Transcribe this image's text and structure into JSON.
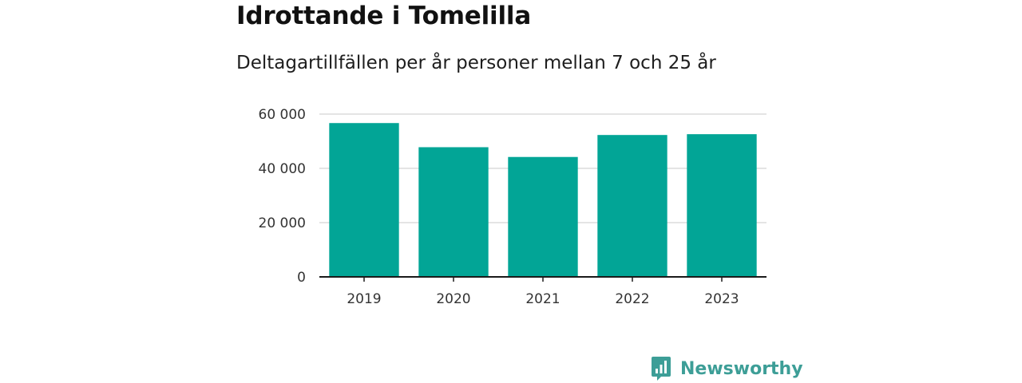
{
  "colors": {
    "bar": "#02a596",
    "grid": "#dcdcdc",
    "axis": "#1a1a1a",
    "brand": "#3d9e97"
  },
  "brand": {
    "name": "Newsworthy",
    "icon": "newsworthy-logo-icon"
  },
  "chart_data": {
    "type": "bar",
    "title": "Idrottande i Tomelilla",
    "subtitle": "Deltagartillfällen per år personer mellan 7 och 25 år",
    "xlabel": "",
    "ylabel": "",
    "categories": [
      "2019",
      "2020",
      "2021",
      "2022",
      "2023"
    ],
    "values": [
      56700,
      47800,
      44200,
      52300,
      52600
    ],
    "ylim": [
      0,
      60000
    ],
    "yticks": [
      0,
      20000,
      40000,
      60000
    ],
    "ytick_labels": [
      "0",
      "20 000",
      "40 000",
      "60 000"
    ],
    "grid": true,
    "legend": "none"
  }
}
